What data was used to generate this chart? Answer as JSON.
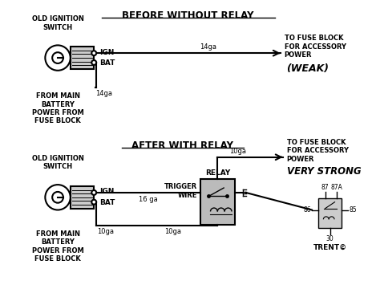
{
  "bg_color": "#ffffff",
  "line_color": "#000000",
  "title1": "BEFORE WITHOUT RELAY",
  "title2": "AFTER WITH RELAY",
  "top_labels": {
    "old_ignition_switch": "OLD IGNITION\nSWITCH",
    "ign": "IGN",
    "bat": "BAT",
    "from_main": "FROM MAIN\nBATTERY\nPOWER FROM\nFUSE BLOCK",
    "14ga_horiz": "14ga",
    "14ga_vert": "14ga",
    "to_fuse": "TO FUSE BLOCK\nFOR ACCESSORY\nPOWER",
    "weak": "(WEAK)"
  },
  "bot_labels": {
    "old_ignition_switch": "OLD IGNITION\nSWITCH",
    "ign": "IGN",
    "bat": "BAT",
    "trigger_wire": "TRIGGER\nWIRE",
    "relay": "RELAY",
    "from_main": "FROM MAIN\nBATTERY\nPOWER FROM\nFUSE BLOCK",
    "10ga_left": "10ga",
    "10ga_mid": "10ga",
    "10ga_top": "10ga",
    "16ga": "16 ga",
    "to_fuse": "TO FUSE BLOCK\nFOR ACCESSORY\nPOWER",
    "very_strong": "VERY STRONG",
    "relay_pins": [
      "87",
      "87A",
      "86",
      "85",
      "30"
    ],
    "trent": "TRENT©"
  }
}
